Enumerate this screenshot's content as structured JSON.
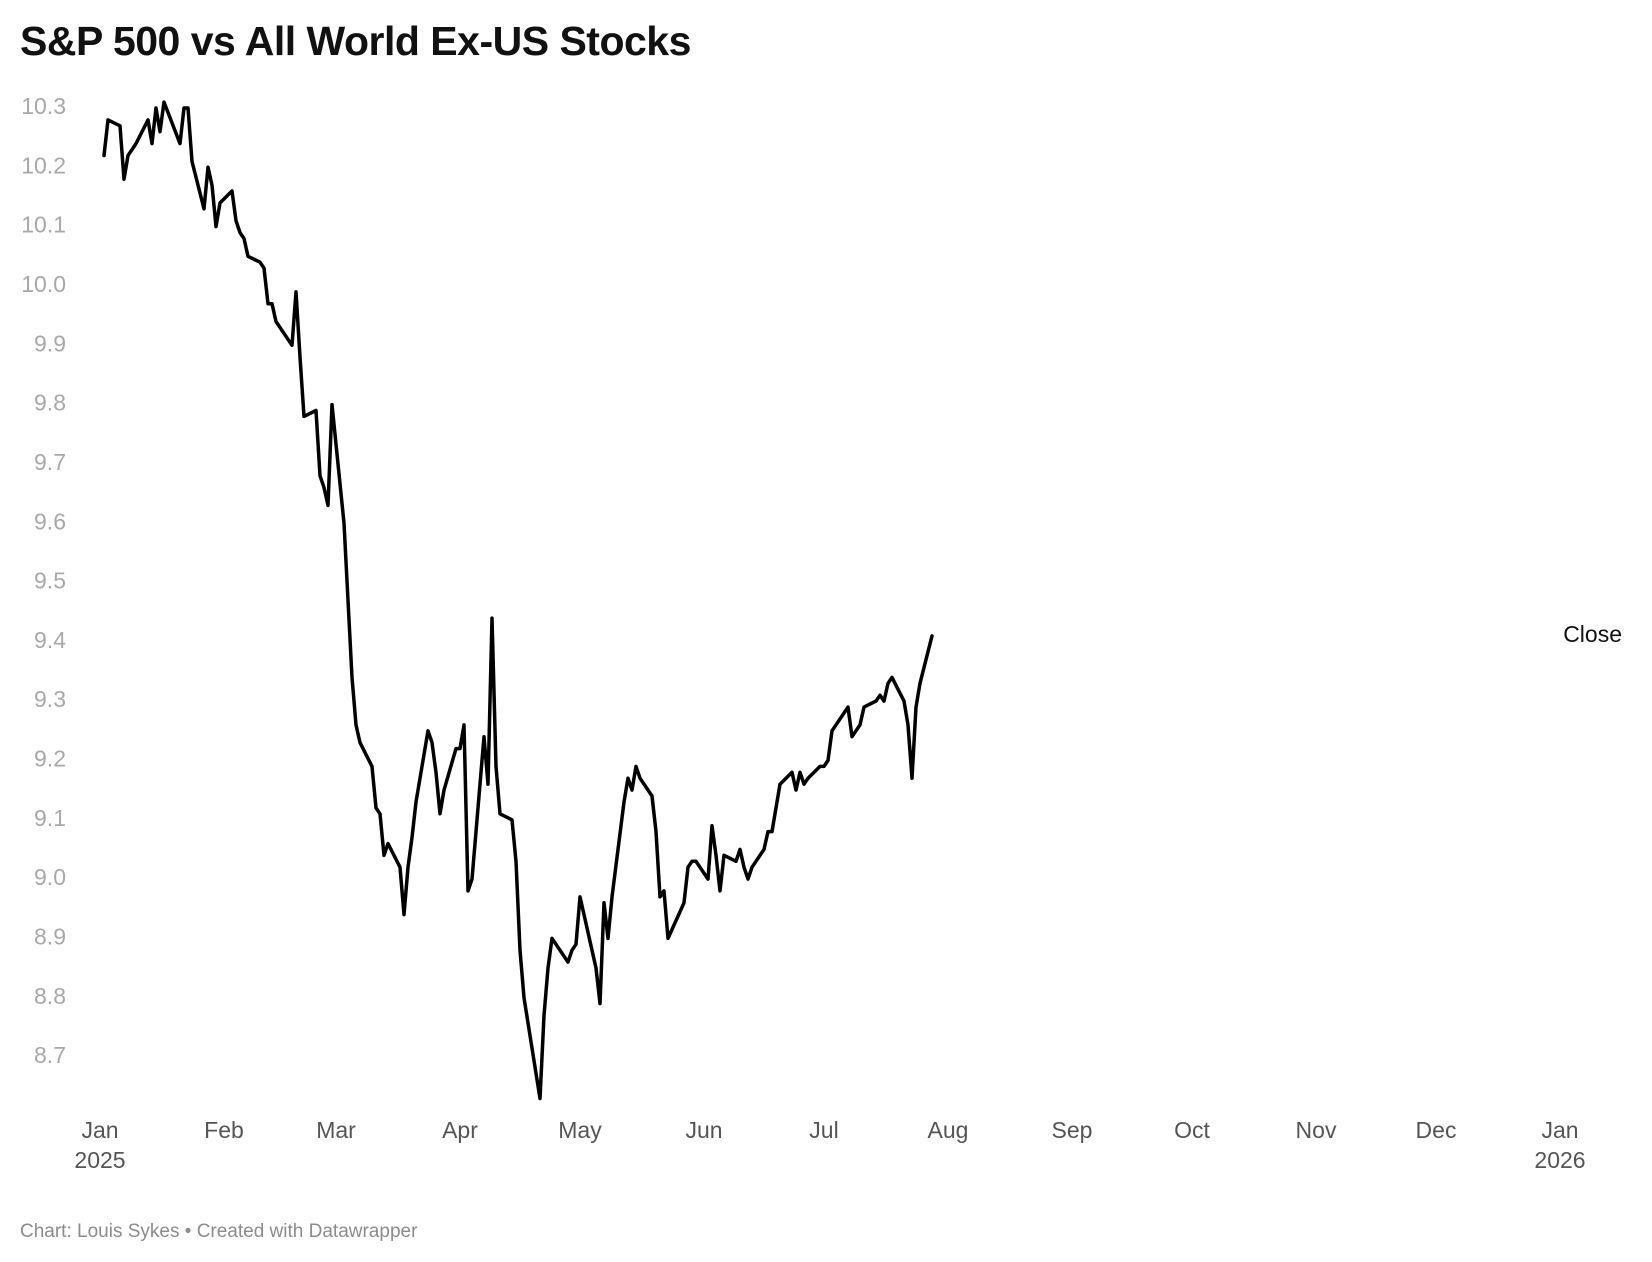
{
  "title": "S&P 500 vs All World Ex-US Stocks",
  "footer": {
    "credit": "Chart: Louis Sykes",
    "separator": "•",
    "tool": "Created with Datawrapper"
  },
  "chart_data": {
    "type": "line",
    "title": "S&P 500 vs All World Ex-US Stocks",
    "xlabel": "",
    "ylabel": "",
    "xlim": [
      "2025-01-01",
      "2026-01-01"
    ],
    "ylim": [
      8.62,
      10.32
    ],
    "grid": false,
    "legend": "none",
    "y_ticks": [
      "10.3",
      "10.2",
      "10.1",
      "10.0",
      "9.9",
      "9.8",
      "9.7",
      "9.6",
      "9.5",
      "9.4",
      "9.3",
      "9.2",
      "9.1",
      "9.0",
      "8.9",
      "8.8",
      "8.7"
    ],
    "x_ticks": [
      {
        "date": "2025-01-01",
        "label": "Jan",
        "sublabel": "2025"
      },
      {
        "date": "2025-02-01",
        "label": "Feb",
        "sublabel": ""
      },
      {
        "date": "2025-03-01",
        "label": "Mar",
        "sublabel": ""
      },
      {
        "date": "2025-04-01",
        "label": "Apr",
        "sublabel": ""
      },
      {
        "date": "2025-05-01",
        "label": "May",
        "sublabel": ""
      },
      {
        "date": "2025-06-01",
        "label": "Jun",
        "sublabel": ""
      },
      {
        "date": "2025-07-01",
        "label": "Jul",
        "sublabel": ""
      },
      {
        "date": "2025-08-01",
        "label": "Aug",
        "sublabel": ""
      },
      {
        "date": "2025-09-01",
        "label": "Sep",
        "sublabel": ""
      },
      {
        "date": "2025-10-01",
        "label": "Oct",
        "sublabel": ""
      },
      {
        "date": "2025-11-01",
        "label": "Nov",
        "sublabel": ""
      },
      {
        "date": "2025-12-01",
        "label": "Dec",
        "sublabel": ""
      },
      {
        "date": "2026-01-01",
        "label": "Jan",
        "sublabel": "2026"
      }
    ],
    "series": [
      {
        "name": "Close",
        "color": "#000000",
        "points": [
          [
            "2025-01-02",
            10.22
          ],
          [
            "2025-01-03",
            10.28
          ],
          [
            "2025-01-06",
            10.27
          ],
          [
            "2025-01-07",
            10.18
          ],
          [
            "2025-01-08",
            10.22
          ],
          [
            "2025-01-10",
            10.24
          ],
          [
            "2025-01-13",
            10.28
          ],
          [
            "2025-01-14",
            10.24
          ],
          [
            "2025-01-15",
            10.3
          ],
          [
            "2025-01-16",
            10.26
          ],
          [
            "2025-01-17",
            10.31
          ],
          [
            "2025-01-21",
            10.24
          ],
          [
            "2025-01-22",
            10.3
          ],
          [
            "2025-01-23",
            10.3
          ],
          [
            "2025-01-24",
            10.21
          ],
          [
            "2025-01-27",
            10.13
          ],
          [
            "2025-01-28",
            10.2
          ],
          [
            "2025-01-29",
            10.17
          ],
          [
            "2025-01-30",
            10.1
          ],
          [
            "2025-01-31",
            10.14
          ],
          [
            "2025-02-03",
            10.16
          ],
          [
            "2025-02-04",
            10.11
          ],
          [
            "2025-02-05",
            10.09
          ],
          [
            "2025-02-06",
            10.08
          ],
          [
            "2025-02-07",
            10.05
          ],
          [
            "2025-02-10",
            10.04
          ],
          [
            "2025-02-11",
            10.03
          ],
          [
            "2025-02-12",
            9.97
          ],
          [
            "2025-02-13",
            9.97
          ],
          [
            "2025-02-14",
            9.94
          ],
          [
            "2025-02-18",
            9.9
          ],
          [
            "2025-02-19",
            9.99
          ],
          [
            "2025-02-20",
            9.88
          ],
          [
            "2025-02-21",
            9.78
          ],
          [
            "2025-02-24",
            9.79
          ],
          [
            "2025-02-25",
            9.68
          ],
          [
            "2025-02-26",
            9.66
          ],
          [
            "2025-02-27",
            9.63
          ],
          [
            "2025-02-28",
            9.8
          ],
          [
            "2025-03-03",
            9.6
          ],
          [
            "2025-03-04",
            9.47
          ],
          [
            "2025-03-05",
            9.34
          ],
          [
            "2025-03-06",
            9.26
          ],
          [
            "2025-03-07",
            9.23
          ],
          [
            "2025-03-10",
            9.19
          ],
          [
            "2025-03-11",
            9.12
          ],
          [
            "2025-03-12",
            9.11
          ],
          [
            "2025-03-13",
            9.04
          ],
          [
            "2025-03-14",
            9.06
          ],
          [
            "2025-03-17",
            9.02
          ],
          [
            "2025-03-18",
            8.94
          ],
          [
            "2025-03-19",
            9.02
          ],
          [
            "2025-03-20",
            9.07
          ],
          [
            "2025-03-21",
            9.13
          ],
          [
            "2025-03-24",
            9.25
          ],
          [
            "2025-03-25",
            9.23
          ],
          [
            "2025-03-26",
            9.18
          ],
          [
            "2025-03-27",
            9.11
          ],
          [
            "2025-03-28",
            9.15
          ],
          [
            "2025-03-31",
            9.22
          ],
          [
            "2025-04-01",
            9.22
          ],
          [
            "2025-04-02",
            9.26
          ],
          [
            "2025-04-03",
            8.98
          ],
          [
            "2025-04-04",
            9.0
          ],
          [
            "2025-04-07",
            9.24
          ],
          [
            "2025-04-08",
            9.16
          ],
          [
            "2025-04-09",
            9.44
          ],
          [
            "2025-04-10",
            9.19
          ],
          [
            "2025-04-11",
            9.11
          ],
          [
            "2025-04-14",
            9.1
          ],
          [
            "2025-04-15",
            9.03
          ],
          [
            "2025-04-16",
            8.88
          ],
          [
            "2025-04-17",
            8.8
          ],
          [
            "2025-04-21",
            8.63
          ],
          [
            "2025-04-22",
            8.77
          ],
          [
            "2025-04-23",
            8.85
          ],
          [
            "2025-04-24",
            8.9
          ],
          [
            "2025-04-25",
            8.89
          ],
          [
            "2025-04-28",
            8.86
          ],
          [
            "2025-04-29",
            8.88
          ],
          [
            "2025-04-30",
            8.89
          ],
          [
            "2025-05-01",
            8.97
          ],
          [
            "2025-05-02",
            8.94
          ],
          [
            "2025-05-05",
            8.85
          ],
          [
            "2025-05-06",
            8.79
          ],
          [
            "2025-05-07",
            8.96
          ],
          [
            "2025-05-08",
            8.9
          ],
          [
            "2025-05-09",
            8.97
          ],
          [
            "2025-05-12",
            9.13
          ],
          [
            "2025-05-13",
            9.17
          ],
          [
            "2025-05-14",
            9.15
          ],
          [
            "2025-05-15",
            9.19
          ],
          [
            "2025-05-16",
            9.17
          ],
          [
            "2025-05-19",
            9.14
          ],
          [
            "2025-05-20",
            9.08
          ],
          [
            "2025-05-21",
            8.97
          ],
          [
            "2025-05-22",
            8.98
          ],
          [
            "2025-05-23",
            8.9
          ],
          [
            "2025-05-27",
            8.96
          ],
          [
            "2025-05-28",
            9.02
          ],
          [
            "2025-05-29",
            9.03
          ],
          [
            "2025-05-30",
            9.03
          ],
          [
            "2025-06-02",
            9.0
          ],
          [
            "2025-06-03",
            9.09
          ],
          [
            "2025-06-04",
            9.04
          ],
          [
            "2025-06-05",
            8.98
          ],
          [
            "2025-06-06",
            9.04
          ],
          [
            "2025-06-09",
            9.03
          ],
          [
            "2025-06-10",
            9.05
          ],
          [
            "2025-06-11",
            9.02
          ],
          [
            "2025-06-12",
            9.0
          ],
          [
            "2025-06-13",
            9.02
          ],
          [
            "2025-06-16",
            9.05
          ],
          [
            "2025-06-17",
            9.08
          ],
          [
            "2025-06-18",
            9.08
          ],
          [
            "2025-06-20",
            9.16
          ],
          [
            "2025-06-23",
            9.18
          ],
          [
            "2025-06-24",
            9.15
          ],
          [
            "2025-06-25",
            9.18
          ],
          [
            "2025-06-26",
            9.16
          ],
          [
            "2025-06-27",
            9.17
          ],
          [
            "2025-06-30",
            9.19
          ],
          [
            "2025-07-01",
            9.19
          ],
          [
            "2025-07-02",
            9.2
          ],
          [
            "2025-07-03",
            9.25
          ],
          [
            "2025-07-07",
            9.29
          ],
          [
            "2025-07-08",
            9.24
          ],
          [
            "2025-07-09",
            9.25
          ],
          [
            "2025-07-10",
            9.26
          ],
          [
            "2025-07-11",
            9.29
          ],
          [
            "2025-07-14",
            9.3
          ],
          [
            "2025-07-15",
            9.31
          ],
          [
            "2025-07-16",
            9.3
          ],
          [
            "2025-07-17",
            9.33
          ],
          [
            "2025-07-18",
            9.34
          ],
          [
            "2025-07-21",
            9.3
          ],
          [
            "2025-07-22",
            9.26
          ],
          [
            "2025-07-23",
            9.17
          ],
          [
            "2025-07-24",
            9.29
          ],
          [
            "2025-07-25",
            9.33
          ],
          [
            "2025-07-28",
            9.41
          ]
        ]
      }
    ]
  }
}
